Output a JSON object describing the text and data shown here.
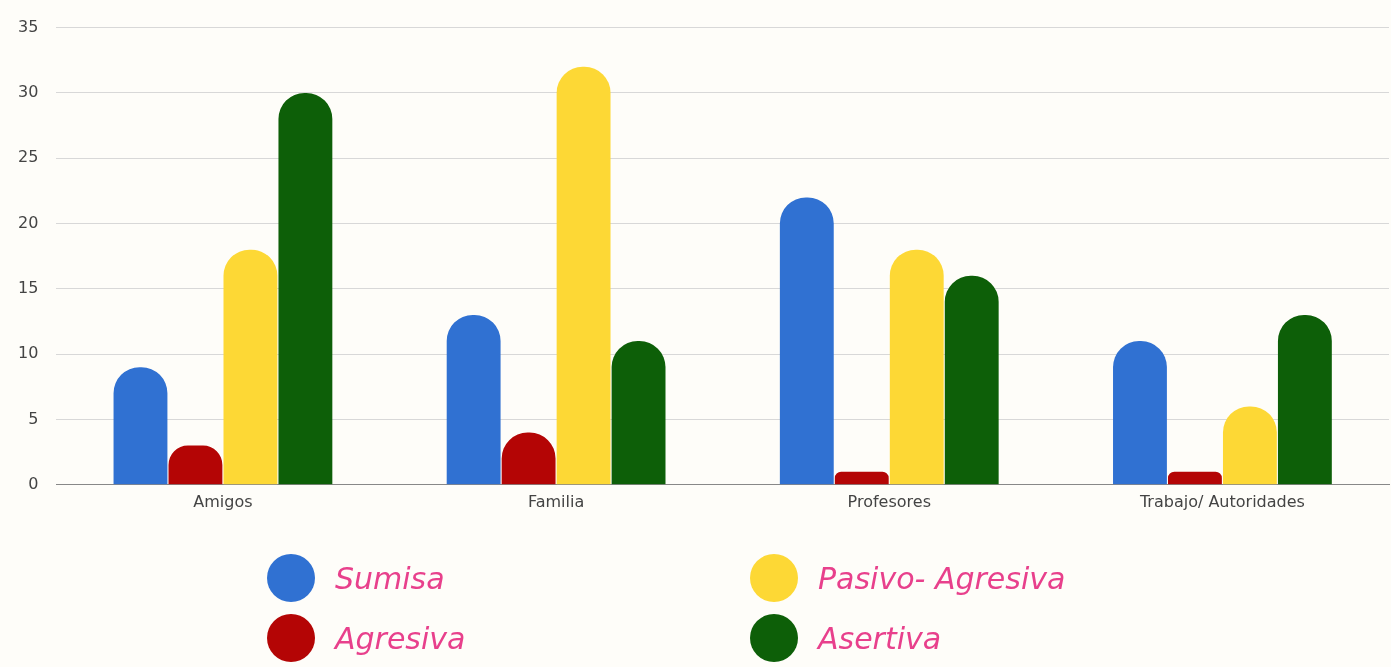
{
  "chart_data": {
    "type": "bar",
    "categories": [
      "Amigos",
      "Familia",
      "Profesores",
      "Trabajo/ Autoridades"
    ],
    "series": [
      {
        "name": "Sumisa",
        "color": "#3071d2",
        "values": [
          9,
          13,
          22,
          11
        ]
      },
      {
        "name": "Agresiva",
        "color": "#b40505",
        "values": [
          3,
          4,
          1,
          1
        ]
      },
      {
        "name": "Pasivo- Agresiva",
        "color": "#fdd835",
        "values": [
          18,
          32,
          18,
          6
        ]
      },
      {
        "name": "Asertiva",
        "color": "#0d5f08",
        "values": [
          30,
          11,
          16,
          13
        ]
      }
    ],
    "ylim": [
      0,
      35
    ],
    "yticks": [
      0,
      5,
      10,
      15,
      20,
      25,
      30,
      35
    ],
    "grid": "y",
    "legend": "bottom"
  }
}
